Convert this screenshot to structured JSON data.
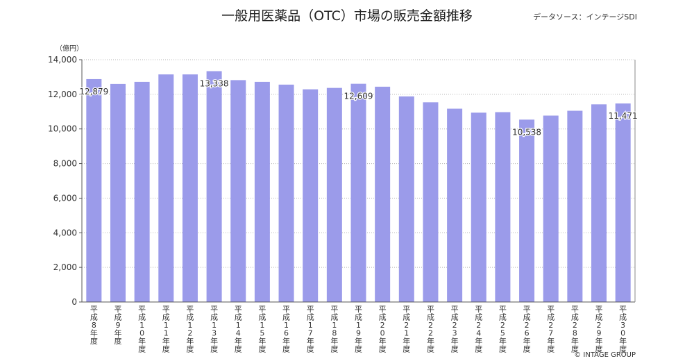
{
  "header": {
    "title": "一般用医薬品（OTC）市場の販売金額推移",
    "source": "データソース：インテージSDI",
    "unit": "（億円）",
    "copyright": "© INTAGE GROUP"
  },
  "chart_data": {
    "type": "bar",
    "categories": [
      "平成8年度",
      "平成9年度",
      "平成10年度",
      "平成11年度",
      "平成12年度",
      "平成13年度",
      "平成14年度",
      "平成15年度",
      "平成16年度",
      "平成17年度",
      "平成18年度",
      "平成19年度",
      "平成20年度",
      "平成21年度",
      "平成22年度",
      "平成23年度",
      "平成24年度",
      "平成25年度",
      "平成26年度",
      "平成27年度",
      "平成28年度",
      "平成29年度",
      "平成30年度"
    ],
    "values": [
      12879,
      12600,
      12720,
      13150,
      13150,
      13338,
      12820,
      12720,
      12560,
      12290,
      12370,
      12609,
      12440,
      11880,
      11540,
      11170,
      10940,
      10970,
      10538,
      10770,
      11050,
      11420,
      11471
    ],
    "data_labels": [
      {
        "index": 0,
        "text": "12,879"
      },
      {
        "index": 5,
        "text": "13,338"
      },
      {
        "index": 11,
        "text": "12,609"
      },
      {
        "index": 18,
        "text": "10,538"
      },
      {
        "index": 22,
        "text": "11,471"
      }
    ],
    "y_ticks": [
      "0",
      "2,000",
      "4,000",
      "6,000",
      "8,000",
      "10,000",
      "12,000",
      "14,000"
    ],
    "ylim": [
      0,
      14000
    ],
    "bar_color": "#9b9bea",
    "grid": true
  }
}
